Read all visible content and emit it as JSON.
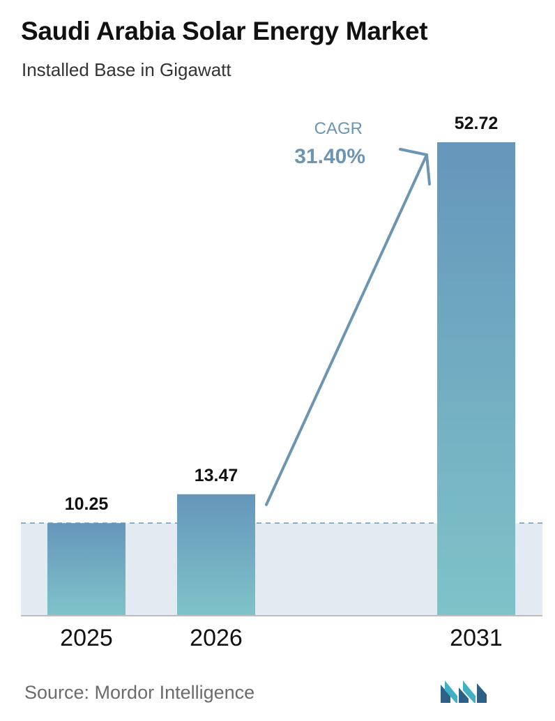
{
  "header": {
    "title": "Saudi Arabia Solar Energy Market",
    "subtitle": "Installed Base in Gigawatt"
  },
  "chart_data": {
    "type": "bar",
    "title": "Saudi Arabia Solar Energy Market",
    "subtitle": "Installed Base in Gigawatt",
    "categories": [
      "2025",
      "2026",
      "2031"
    ],
    "values": [
      10.25,
      13.47,
      52.72
    ],
    "value_labels": [
      "10.25",
      "13.47",
      "52.72"
    ],
    "ylim": [
      0,
      52.72
    ],
    "grid": false,
    "annotation": {
      "label": "CAGR",
      "value": "31.40%"
    }
  },
  "footer": {
    "source": "Source:  Mordor Intelligence"
  },
  "colors": {
    "bar_top": "#6596bb",
    "bar_bottom": "#7fc3c8",
    "band": "#e3eaf2",
    "accent": "#6b95b3",
    "logo_dark": "#2e5f86",
    "logo_light": "#3fb1c4"
  },
  "icons": {
    "logo": "mordor-intelligence-logo-icon"
  }
}
